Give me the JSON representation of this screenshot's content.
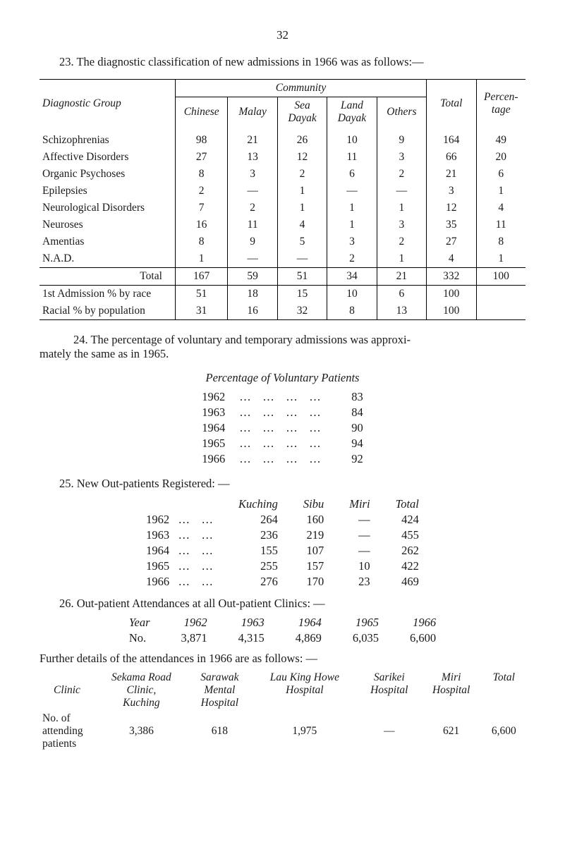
{
  "page_number": "32",
  "intro23": "23.   The diagnostic classification of new admissions in 1966 was as follows:—",
  "diag_table": {
    "row_header": "Diagnostic Group",
    "community_header": "Community",
    "cols": [
      "Chinese",
      "Malay",
      "Sea Dayak",
      "Land Dayak",
      "Others"
    ],
    "total_col": "Total",
    "pct_col": "Percen-\ntage",
    "rows": [
      {
        "label": "Schizophrenias",
        "v": [
          "98",
          "21",
          "26",
          "10",
          "9",
          "164",
          "49"
        ]
      },
      {
        "label": "Affective Disorders",
        "v": [
          "27",
          "13",
          "12",
          "11",
          "3",
          "66",
          "20"
        ]
      },
      {
        "label": "Organic Psychoses",
        "v": [
          "8",
          "3",
          "2",
          "6",
          "2",
          "21",
          "6"
        ]
      },
      {
        "label": "Epilepsies",
        "v": [
          "2",
          "—",
          "1",
          "—",
          "—",
          "3",
          "1"
        ]
      },
      {
        "label": "Neurological Disorders",
        "v": [
          "7",
          "2",
          "1",
          "1",
          "1",
          "12",
          "4"
        ]
      },
      {
        "label": "Neuroses",
        "v": [
          "16",
          "11",
          "4",
          "1",
          "3",
          "35",
          "11"
        ]
      },
      {
        "label": "Amentias",
        "v": [
          "8",
          "9",
          "5",
          "3",
          "2",
          "27",
          "8"
        ]
      },
      {
        "label": "N.A.D.",
        "v": [
          "1",
          "—",
          "—",
          "2",
          "1",
          "4",
          "1"
        ]
      }
    ],
    "total_row": {
      "label": "Total",
      "v": [
        "167",
        "59",
        "51",
        "34",
        "21",
        "332",
        "100"
      ]
    },
    "footer_rows": [
      {
        "label": "1st Admission % by race",
        "v": [
          "51",
          "18",
          "15",
          "10",
          "6",
          "100",
          ""
        ]
      },
      {
        "label": "Racial % by population",
        "v": [
          "31",
          "16",
          "32",
          "8",
          "13",
          "100",
          ""
        ]
      }
    ]
  },
  "para24": "24.   The percentage of voluntary and temporary admissions was approxi-\nmately the same as in 1965.",
  "vol_title": "Percentage of Voluntary Patients",
  "vol_rows": [
    {
      "year": "1962",
      "dots": "…    …    …    …",
      "val": "83"
    },
    {
      "year": "1963",
      "dots": "…    …    …    …",
      "val": "84"
    },
    {
      "year": "1964",
      "dots": "…    …    …    …",
      "val": "90"
    },
    {
      "year": "1965",
      "dots": "…    …    …    …",
      "val": "94"
    },
    {
      "year": "1966",
      "dots": "…    …    …    …",
      "val": "92"
    }
  ],
  "para25": "25.   New Out-patients Registered: —",
  "out_cols": [
    "Kuching",
    "Sibu",
    "Miri",
    "Total"
  ],
  "out_rows": [
    {
      "year": "1962   …    …",
      "v": [
        "264",
        "160",
        "—",
        "424"
      ]
    },
    {
      "year": "1963   …    …",
      "v": [
        "236",
        "219",
        "—",
        "455"
      ]
    },
    {
      "year": "1964   …    …",
      "v": [
        "155",
        "107",
        "—",
        "262"
      ]
    },
    {
      "year": "1965   …    …",
      "v": [
        "255",
        "157",
        "10",
        "422"
      ]
    },
    {
      "year": "1966   …    …",
      "v": [
        "276",
        "170",
        "23",
        "469"
      ]
    }
  ],
  "para26": "26.   Out-patient Attendances at all Out-patient Clinics: —",
  "att_header": {
    "year": "Year",
    "cols": [
      "1962",
      "1963",
      "1964",
      "1965",
      "1966"
    ]
  },
  "att_row": {
    "label": "No.",
    "v": [
      "3,871",
      "4,315",
      "4,869",
      "6,035",
      "6,600"
    ]
  },
  "further_para": "Further details of the attendances in 1966 are as follows: —",
  "clinics_headers": {
    "clinic": "Clinic",
    "h": [
      "Sekama Road\nClinic,\nKuching",
      "Sarawak\nMental\nHospital",
      "Lau King Howe\nHospital",
      "Sarikei\nHospital",
      "Miri\nHospital",
      "Total"
    ]
  },
  "clinics_row": {
    "label": "No. of\nattending\npatients",
    "v": [
      "3,386",
      "618",
      "1,975",
      "—",
      "621",
      "6,600"
    ]
  }
}
